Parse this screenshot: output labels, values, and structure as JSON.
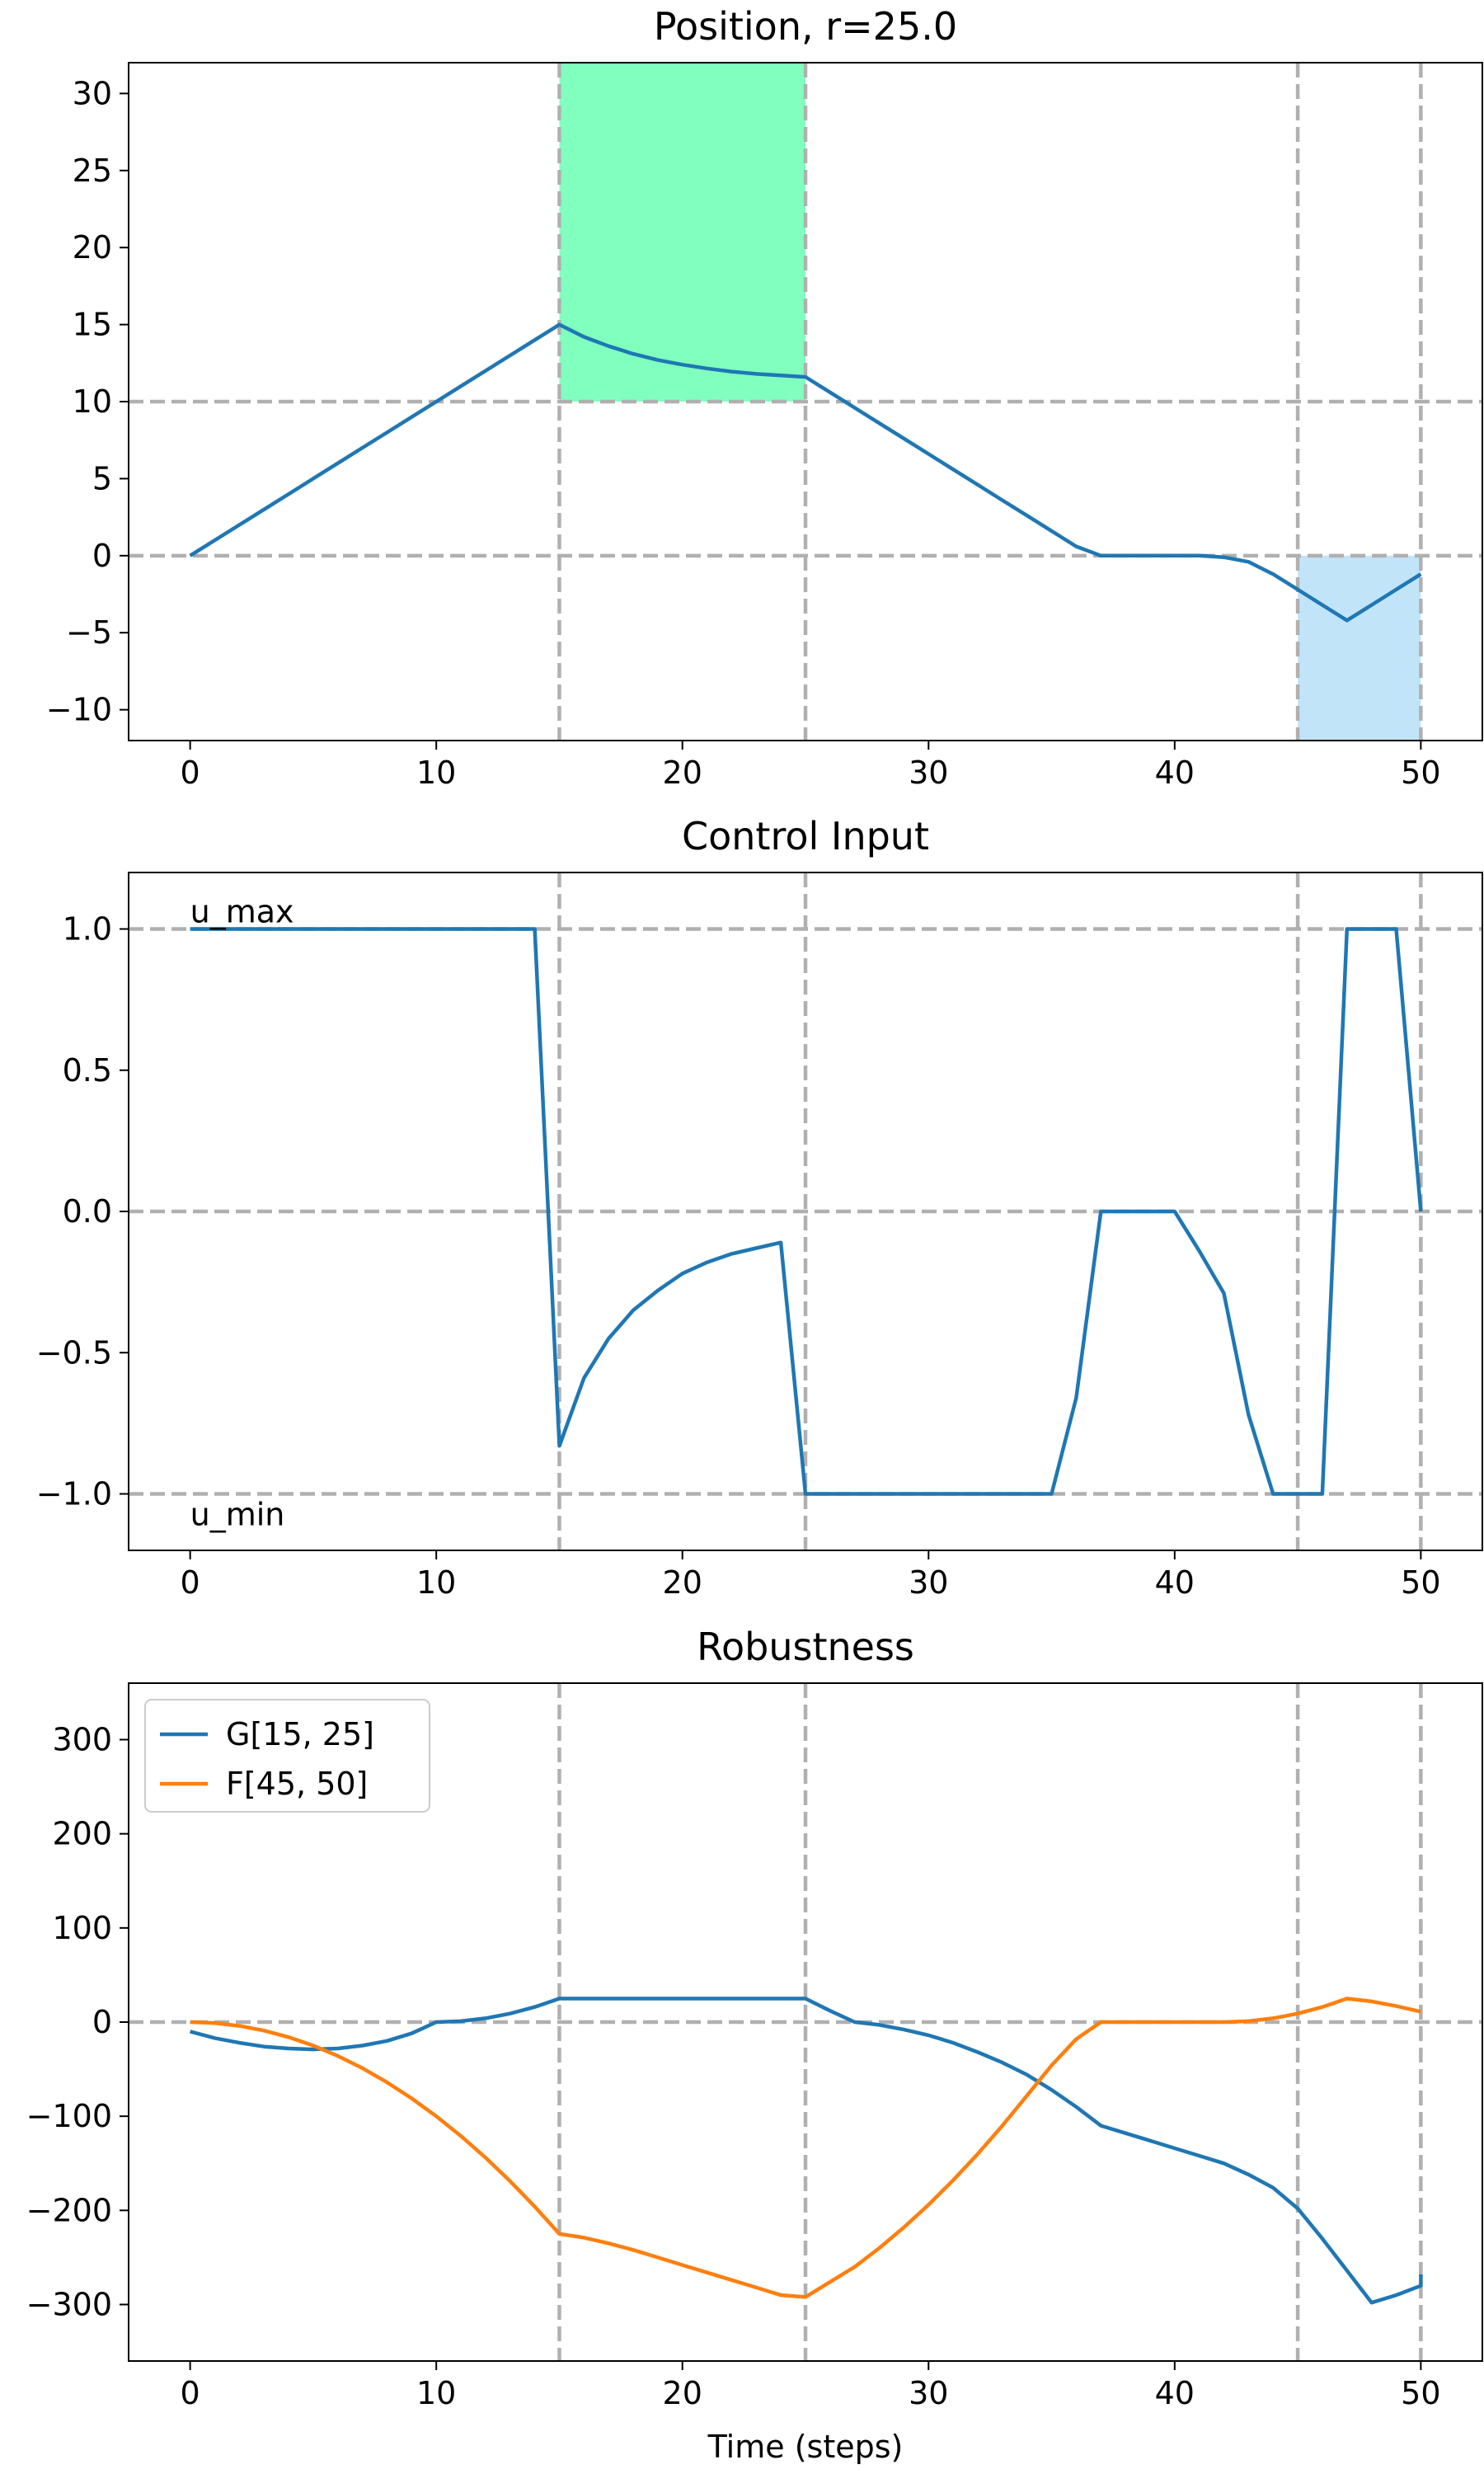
{
  "chart_data": [
    {
      "type": "line",
      "title": "Position, r=25.0",
      "xlabel": "",
      "ylabel": "",
      "xlim": [
        -2.5,
        52.5
      ],
      "ylim": [
        -12,
        32
      ],
      "xticks": [
        0,
        10,
        20,
        30,
        40,
        50
      ],
      "yticks": [
        30,
        25,
        20,
        15,
        10,
        5,
        0,
        -5,
        -10
      ],
      "ytick_labels": [
        "30",
        "25",
        "20",
        "15",
        "10",
        "5",
        "0",
        "−5",
        "−10"
      ],
      "vlines": [
        15,
        25,
        45,
        50
      ],
      "hlines": [
        10,
        0
      ],
      "regions": [
        {
          "x0": 15,
          "x1": 25,
          "y0": 10,
          "y1": 32,
          "color": "#80ffbf"
        },
        {
          "x0": 45,
          "x1": 50,
          "y0": -12,
          "y1": 0,
          "color": "#c2e4f9"
        }
      ],
      "series": [
        {
          "color": "#1f77b4",
          "points": [
            [
              0,
              0
            ],
            [
              1,
              1
            ],
            [
              2,
              2
            ],
            [
              3,
              3
            ],
            [
              4,
              4
            ],
            [
              5,
              5
            ],
            [
              6,
              6
            ],
            [
              7,
              7
            ],
            [
              8,
              8
            ],
            [
              9,
              9
            ],
            [
              10,
              10
            ],
            [
              11,
              11
            ],
            [
              12,
              12
            ],
            [
              13,
              13
            ],
            [
              14,
              14
            ],
            [
              15,
              15
            ],
            [
              16,
              14.2
            ],
            [
              17,
              13.6
            ],
            [
              18,
              13.1
            ],
            [
              19,
              12.7
            ],
            [
              20,
              12.4
            ],
            [
              21,
              12.15
            ],
            [
              22,
              11.95
            ],
            [
              23,
              11.8
            ],
            [
              24,
              11.7
            ],
            [
              25,
              11.6
            ],
            [
              26,
              10.6
            ],
            [
              27,
              9.6
            ],
            [
              28,
              8.6
            ],
            [
              29,
              7.6
            ],
            [
              30,
              6.6
            ],
            [
              31,
              5.6
            ],
            [
              32,
              4.6
            ],
            [
              33,
              3.6
            ],
            [
              34,
              2.6
            ],
            [
              35,
              1.6
            ],
            [
              36,
              0.6
            ],
            [
              37,
              0
            ],
            [
              38,
              0
            ],
            [
              39,
              0
            ],
            [
              40,
              0
            ],
            [
              41,
              0
            ],
            [
              42,
              -0.1
            ],
            [
              43,
              -0.4
            ],
            [
              44,
              -1.2
            ],
            [
              45,
              -2.2
            ],
            [
              46,
              -3.2
            ],
            [
              47,
              -4.2
            ],
            [
              48,
              -3.2
            ],
            [
              49,
              -2.2
            ],
            [
              50,
              -1.2
            ]
          ]
        }
      ]
    },
    {
      "type": "line",
      "title": "Control Input",
      "xlabel": "",
      "ylabel": "",
      "xlim": [
        -2.5,
        52.5
      ],
      "ylim": [
        -1.2,
        1.2
      ],
      "xticks": [
        0,
        10,
        20,
        30,
        40,
        50
      ],
      "yticks": [
        1.0,
        0.5,
        0.0,
        -0.5,
        -1.0
      ],
      "ytick_labels": [
        "1.0",
        "0.5",
        "0.0",
        "−0.5",
        "−1.0"
      ],
      "vlines": [
        15,
        25,
        45,
        50
      ],
      "hlines": [
        1.0,
        0.0,
        -1.0
      ],
      "annotations": [
        {
          "text": "u_max",
          "x": 0,
          "y": 1.0,
          "va": "bottom"
        },
        {
          "text": "u_min",
          "x": 0,
          "y": -1.0,
          "va": "top"
        }
      ],
      "series": [
        {
          "color": "#1f77b4",
          "points": [
            [
              0,
              1
            ],
            [
              1,
              1
            ],
            [
              2,
              1
            ],
            [
              3,
              1
            ],
            [
              4,
              1
            ],
            [
              5,
              1
            ],
            [
              6,
              1
            ],
            [
              7,
              1
            ],
            [
              8,
              1
            ],
            [
              9,
              1
            ],
            [
              10,
              1
            ],
            [
              11,
              1
            ],
            [
              12,
              1
            ],
            [
              13,
              1
            ],
            [
              14,
              1
            ],
            [
              15,
              -0.83
            ],
            [
              16,
              -0.59
            ],
            [
              17,
              -0.45
            ],
            [
              18,
              -0.35
            ],
            [
              19,
              -0.28
            ],
            [
              20,
              -0.22
            ],
            [
              21,
              -0.18
            ],
            [
              22,
              -0.15
            ],
            [
              23,
              -0.13
            ],
            [
              24,
              -0.11
            ],
            [
              25,
              -1
            ],
            [
              26,
              -1
            ],
            [
              27,
              -1
            ],
            [
              28,
              -1
            ],
            [
              29,
              -1
            ],
            [
              30,
              -1
            ],
            [
              31,
              -1
            ],
            [
              32,
              -1
            ],
            [
              33,
              -1
            ],
            [
              34,
              -1
            ],
            [
              35,
              -1
            ],
            [
              36,
              -0.66
            ],
            [
              37,
              0
            ],
            [
              38,
              0
            ],
            [
              39,
              0
            ],
            [
              40,
              0
            ],
            [
              41,
              -0.14
            ],
            [
              42,
              -0.29
            ],
            [
              43,
              -0.72
            ],
            [
              44,
              -1
            ],
            [
              45,
              -1
            ],
            [
              46,
              -1
            ],
            [
              47,
              1
            ],
            [
              48,
              1
            ],
            [
              49,
              1
            ],
            [
              50,
              0
            ]
          ]
        }
      ]
    },
    {
      "type": "line",
      "title": "Robustness",
      "xlabel": "Time (steps)",
      "ylabel": "",
      "xlim": [
        -2.5,
        52.5
      ],
      "ylim": [
        -360,
        360
      ],
      "xticks": [
        0,
        10,
        20,
        30,
        40,
        50
      ],
      "yticks": [
        300,
        200,
        100,
        0,
        -100,
        -200,
        -300
      ],
      "ytick_labels": [
        "300",
        "200",
        "100",
        "0",
        "−100",
        "−200",
        "−300"
      ],
      "vlines": [
        15,
        25,
        45,
        50
      ],
      "hlines": [
        0
      ],
      "legend": "top-left",
      "series": [
        {
          "name": "G[15, 25]",
          "color": "#1f77b4",
          "points": [
            [
              0,
              -10
            ],
            [
              1,
              -17
            ],
            [
              2,
              -22
            ],
            [
              3,
              -26
            ],
            [
              4,
              -28
            ],
            [
              5,
              -29
            ],
            [
              6,
              -28
            ],
            [
              7,
              -25
            ],
            [
              8,
              -20
            ],
            [
              9,
              -12
            ],
            [
              10,
              0
            ],
            [
              11,
              1
            ],
            [
              12,
              4
            ],
            [
              13,
              9
            ],
            [
              14,
              16
            ],
            [
              15,
              25
            ],
            [
              16,
              25
            ],
            [
              17,
              25
            ],
            [
              18,
              25
            ],
            [
              19,
              25
            ],
            [
              20,
              25
            ],
            [
              21,
              25
            ],
            [
              22,
              25
            ],
            [
              23,
              25
            ],
            [
              24,
              25
            ],
            [
              25,
              25
            ],
            [
              26,
              12
            ],
            [
              27,
              0
            ],
            [
              28,
              -3
            ],
            [
              29,
              -8
            ],
            [
              30,
              -14
            ],
            [
              31,
              -22
            ],
            [
              32,
              -32
            ],
            [
              33,
              -43
            ],
            [
              34,
              -56
            ],
            [
              35,
              -72
            ],
            [
              36,
              -90
            ],
            [
              37,
              -110
            ],
            [
              38,
              -118
            ],
            [
              39,
              -126
            ],
            [
              40,
              -134
            ],
            [
              41,
              -142
            ],
            [
              42,
              -150
            ],
            [
              43,
              -162
            ],
            [
              44,
              -176
            ],
            [
              45,
              -198
            ],
            [
              46,
              -230
            ],
            [
              47,
              -264
            ],
            [
              48,
              -298
            ],
            [
              49,
              -290
            ],
            [
              50,
              -280
            ],
            [
              50,
              -268
            ]
          ]
        },
        {
          "name": "F[45, 50]",
          "color": "#ff7f0e",
          "points": [
            [
              0,
              0
            ],
            [
              1,
              -1
            ],
            [
              2,
              -4
            ],
            [
              3,
              -9
            ],
            [
              4,
              -16
            ],
            [
              5,
              -25
            ],
            [
              6,
              -36
            ],
            [
              7,
              -49
            ],
            [
              8,
              -64
            ],
            [
              9,
              -81
            ],
            [
              10,
              -100
            ],
            [
              11,
              -121
            ],
            [
              12,
              -144
            ],
            [
              13,
              -169
            ],
            [
              14,
              -196
            ],
            [
              15,
              -225
            ],
            [
              16,
              -229
            ],
            [
              17,
              -235
            ],
            [
              18,
              -242
            ],
            [
              19,
              -250
            ],
            [
              20,
              -258
            ],
            [
              21,
              -266
            ],
            [
              22,
              -274
            ],
            [
              23,
              -282
            ],
            [
              24,
              -290
            ],
            [
              25,
              -292
            ],
            [
              26,
              -276
            ],
            [
              27,
              -260
            ],
            [
              28,
              -240
            ],
            [
              29,
              -218
            ],
            [
              30,
              -194
            ],
            [
              31,
              -168
            ],
            [
              32,
              -140
            ],
            [
              33,
              -110
            ],
            [
              34,
              -78
            ],
            [
              35,
              -46
            ],
            [
              36,
              -18
            ],
            [
              37,
              0
            ],
            [
              38,
              0
            ],
            [
              39,
              0
            ],
            [
              40,
              0
            ],
            [
              41,
              0
            ],
            [
              42,
              0
            ],
            [
              43,
              1
            ],
            [
              44,
              4
            ],
            [
              45,
              9
            ],
            [
              46,
              16
            ],
            [
              47,
              25
            ],
            [
              48,
              22
            ],
            [
              49,
              17
            ],
            [
              50,
              11
            ]
          ]
        }
      ]
    }
  ]
}
